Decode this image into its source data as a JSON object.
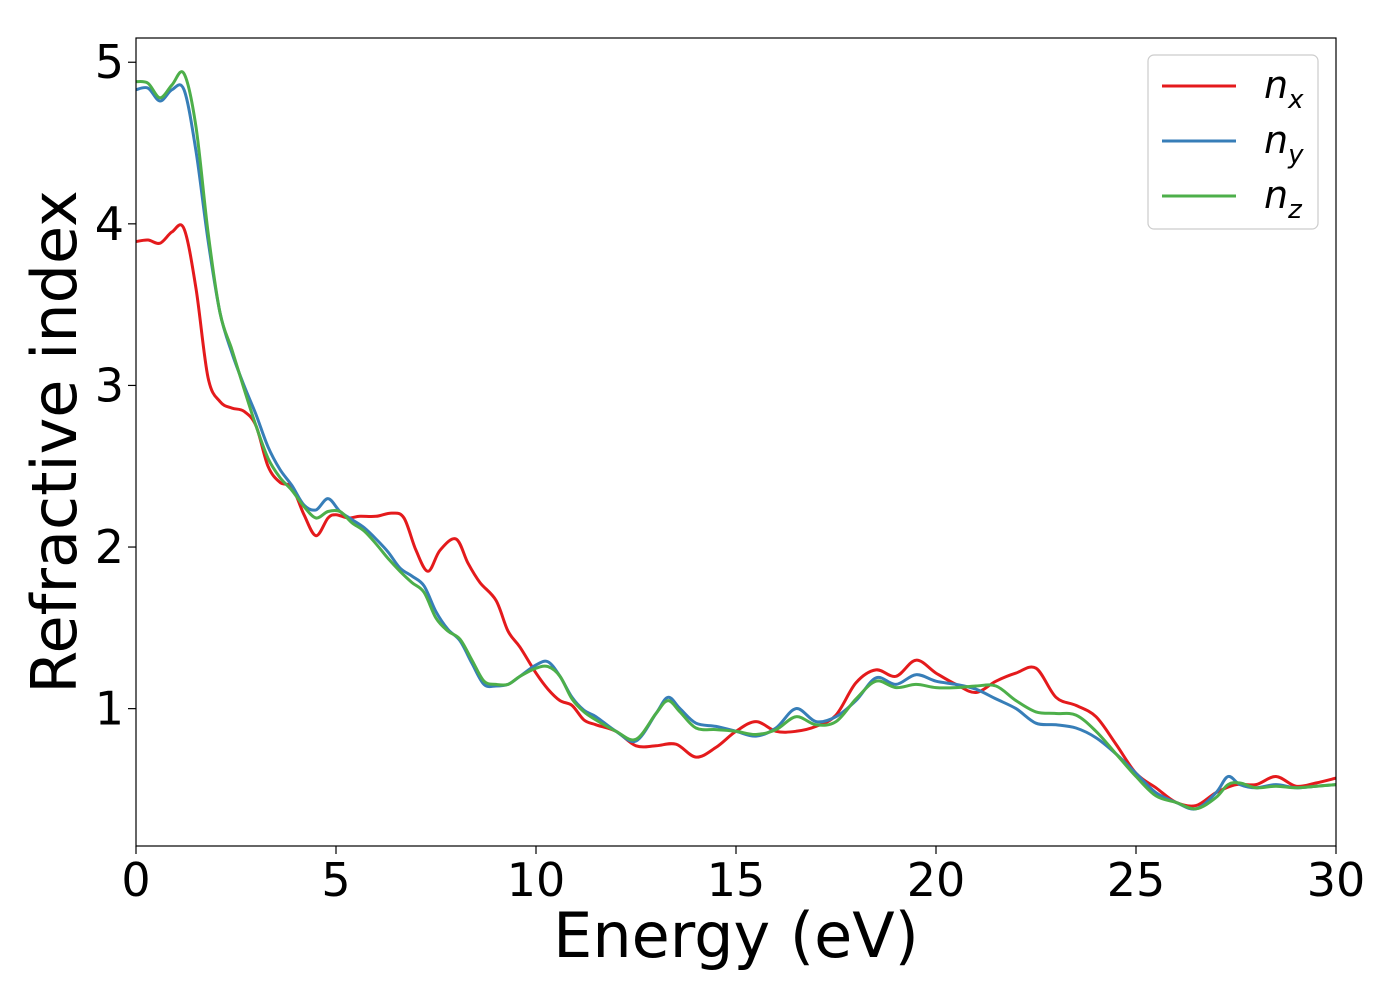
{
  "chart_data": {
    "type": "line",
    "xlabel": "Energy (eV)",
    "ylabel": "Refractive index",
    "xlim": [
      0,
      30
    ],
    "ylim": [
      0.15,
      5.15
    ],
    "xticks": [
      0,
      5,
      10,
      15,
      20,
      25,
      30
    ],
    "xtick_labels": [
      "0",
      "5",
      "10",
      "15",
      "20",
      "25",
      "30"
    ],
    "yticks": [
      1,
      2,
      3,
      4,
      5
    ],
    "ytick_labels": [
      "1",
      "2",
      "3",
      "4",
      "5"
    ],
    "grid": false,
    "legend_position": "top-right",
    "series": [
      {
        "name": "n_x",
        "label_base": "n",
        "label_sub": "x",
        "color": "#e41a1c",
        "x": [
          0,
          0.3,
          0.6,
          0.9,
          1.2,
          1.5,
          1.8,
          2.1,
          2.4,
          2.7,
          3.0,
          3.3,
          3.6,
          3.9,
          4.2,
          4.5,
          4.8,
          5.0,
          5.3,
          5.6,
          6.0,
          6.4,
          6.7,
          7.0,
          7.3,
          7.6,
          8.0,
          8.3,
          8.6,
          9.0,
          9.3,
          9.6,
          10.0,
          10.3,
          10.6,
          10.9,
          11.2,
          11.5,
          12.0,
          12.5,
          13.0,
          13.5,
          14.0,
          14.5,
          15.0,
          15.5,
          16.0,
          16.5,
          17.0,
          17.5,
          18.0,
          18.5,
          19.0,
          19.5,
          20.0,
          20.5,
          21.0,
          21.5,
          22.0,
          22.5,
          23.0,
          23.5,
          24.0,
          24.5,
          25.0,
          25.5,
          26.0,
          26.5,
          27.0,
          27.5,
          28.0,
          28.5,
          29.0,
          29.5,
          30.0
        ],
        "values": [
          3.89,
          3.9,
          3.88,
          3.95,
          3.97,
          3.6,
          3.05,
          2.9,
          2.86,
          2.84,
          2.75,
          2.5,
          2.4,
          2.37,
          2.2,
          2.07,
          2.18,
          2.2,
          2.18,
          2.19,
          2.19,
          2.21,
          2.18,
          1.98,
          1.85,
          1.98,
          2.05,
          1.9,
          1.78,
          1.67,
          1.48,
          1.38,
          1.22,
          1.12,
          1.05,
          1.02,
          0.93,
          0.9,
          0.86,
          0.77,
          0.77,
          0.78,
          0.7,
          0.76,
          0.86,
          0.92,
          0.86,
          0.86,
          0.89,
          0.96,
          1.16,
          1.24,
          1.2,
          1.3,
          1.22,
          1.15,
          1.1,
          1.17,
          1.22,
          1.25,
          1.07,
          1.02,
          0.95,
          0.78,
          0.6,
          0.51,
          0.42,
          0.4,
          0.48,
          0.53,
          0.53,
          0.58,
          0.52,
          0.54,
          0.57
        ]
      },
      {
        "name": "n_y",
        "label_base": "n",
        "label_sub": "y",
        "color": "#377eb8",
        "x": [
          0,
          0.3,
          0.6,
          0.9,
          1.2,
          1.5,
          1.8,
          2.1,
          2.4,
          2.7,
          3.0,
          3.3,
          3.6,
          3.9,
          4.2,
          4.5,
          4.8,
          5.1,
          5.4,
          5.7,
          6.0,
          6.3,
          6.6,
          6.9,
          7.2,
          7.5,
          7.8,
          8.1,
          8.4,
          8.7,
          9.0,
          9.3,
          9.6,
          10.0,
          10.3,
          10.6,
          10.9,
          11.2,
          11.5,
          12.0,
          12.5,
          13.0,
          13.3,
          13.6,
          14.0,
          14.5,
          15.0,
          15.5,
          16.0,
          16.5,
          17.0,
          17.5,
          18.0,
          18.5,
          19.0,
          19.5,
          20.0,
          20.5,
          21.0,
          21.5,
          22.0,
          22.5,
          23.0,
          23.5,
          24.0,
          24.5,
          25.0,
          25.5,
          26.0,
          26.5,
          27.0,
          27.3,
          27.6,
          28.0,
          28.5,
          29.0,
          29.5,
          30.0
        ],
        "values": [
          4.83,
          4.84,
          4.76,
          4.83,
          4.83,
          4.45,
          3.9,
          3.45,
          3.2,
          3.0,
          2.82,
          2.62,
          2.48,
          2.38,
          2.26,
          2.23,
          2.3,
          2.22,
          2.17,
          2.12,
          2.05,
          1.97,
          1.87,
          1.82,
          1.76,
          1.6,
          1.49,
          1.42,
          1.28,
          1.15,
          1.14,
          1.15,
          1.2,
          1.27,
          1.29,
          1.2,
          1.07,
          0.99,
          0.95,
          0.86,
          0.8,
          0.97,
          1.07,
          1.0,
          0.91,
          0.89,
          0.86,
          0.83,
          0.88,
          1.0,
          0.92,
          0.95,
          1.05,
          1.19,
          1.15,
          1.21,
          1.17,
          1.15,
          1.12,
          1.06,
          1.0,
          0.91,
          0.9,
          0.88,
          0.82,
          0.72,
          0.6,
          0.48,
          0.42,
          0.38,
          0.48,
          0.58,
          0.53,
          0.51,
          0.53,
          0.51,
          0.52,
          0.53
        ]
      },
      {
        "name": "n_z",
        "label_base": "n",
        "label_sub": "z",
        "color": "#4daf4a",
        "x": [
          0,
          0.3,
          0.6,
          0.9,
          1.2,
          1.5,
          1.8,
          2.1,
          2.4,
          2.7,
          3.0,
          3.3,
          3.6,
          3.9,
          4.2,
          4.5,
          4.8,
          5.1,
          5.4,
          5.7,
          6.0,
          6.3,
          6.6,
          6.9,
          7.2,
          7.5,
          7.8,
          8.1,
          8.4,
          8.7,
          9.0,
          9.3,
          9.6,
          10.0,
          10.3,
          10.6,
          10.9,
          11.2,
          11.5,
          12.0,
          12.5,
          13.0,
          13.3,
          13.6,
          14.0,
          14.5,
          15.0,
          15.5,
          16.0,
          16.5,
          17.0,
          17.5,
          18.0,
          18.5,
          19.0,
          19.5,
          20.0,
          20.5,
          21.0,
          21.5,
          22.0,
          22.5,
          23.0,
          23.5,
          24.0,
          24.5,
          25.0,
          25.5,
          26.0,
          26.5,
          27.0,
          27.3,
          27.6,
          28.0,
          28.5,
          29.0,
          29.5,
          30.0
        ],
        "values": [
          4.88,
          4.87,
          4.78,
          4.86,
          4.93,
          4.6,
          3.95,
          3.45,
          3.22,
          2.98,
          2.75,
          2.55,
          2.43,
          2.35,
          2.25,
          2.18,
          2.22,
          2.22,
          2.15,
          2.1,
          2.02,
          1.93,
          1.85,
          1.78,
          1.72,
          1.56,
          1.48,
          1.43,
          1.3,
          1.17,
          1.15,
          1.15,
          1.2,
          1.25,
          1.26,
          1.2,
          1.06,
          0.98,
          0.93,
          0.86,
          0.81,
          0.97,
          1.05,
          0.98,
          0.88,
          0.87,
          0.86,
          0.84,
          0.87,
          0.95,
          0.9,
          0.92,
          1.06,
          1.17,
          1.13,
          1.15,
          1.13,
          1.13,
          1.14,
          1.14,
          1.05,
          0.98,
          0.97,
          0.96,
          0.86,
          0.72,
          0.58,
          0.46,
          0.42,
          0.38,
          0.45,
          0.53,
          0.54,
          0.51,
          0.52,
          0.51,
          0.52,
          0.53
        ]
      }
    ]
  }
}
